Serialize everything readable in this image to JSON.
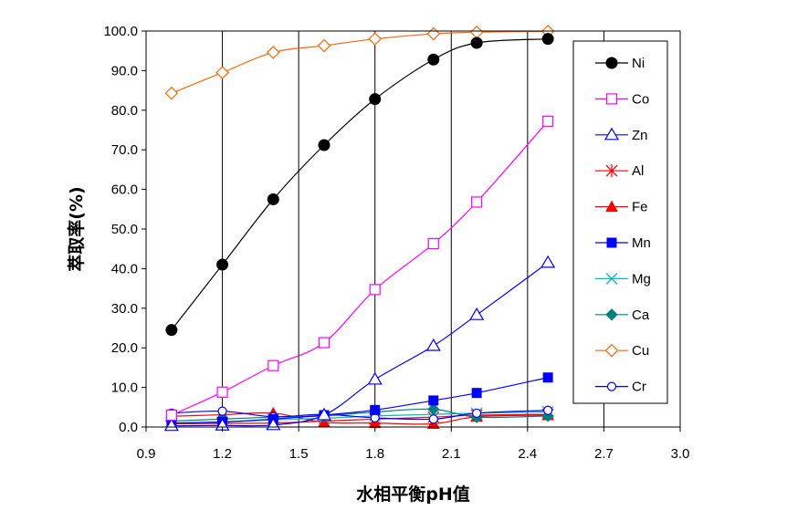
{
  "chart_data": {
    "type": "line",
    "xlabel": "水相平衡pH值",
    "ylabel": "萃取率(%)",
    "xlim": [
      0.9,
      3.0
    ],
    "ylim": [
      0,
      100
    ],
    "x_ticks": [
      "0.9",
      "1.2",
      "1.5",
      "1.8",
      "2.1",
      "2.4",
      "2.7",
      "3.0"
    ],
    "y_ticks": [
      "0.0",
      "10.0",
      "20.0",
      "30.0",
      "40.0",
      "50.0",
      "60.0",
      "70.0",
      "80.0",
      "90.0",
      "100.0"
    ],
    "grid": "vertical",
    "legend_position": "right",
    "x": [
      1.0,
      1.2,
      1.4,
      1.6,
      1.8,
      2.03,
      2.2,
      2.48
    ],
    "series": [
      {
        "name": "Ni",
        "color": "#000000",
        "marker": "filled-circle",
        "values": [
          24.5,
          41.0,
          57.5,
          71.2,
          82.8,
          92.8,
          97.0,
          98.0
        ]
      },
      {
        "name": "Co",
        "color": "#ff00ff",
        "marker": "open-square",
        "values": [
          3.0,
          8.8,
          15.5,
          21.3,
          34.7,
          46.3,
          56.8,
          77.2
        ]
      },
      {
        "name": "Zn",
        "color": "#0000ff",
        "marker": "open-triangle",
        "values": [
          0.3,
          0.4,
          0.5,
          3.0,
          12.0,
          20.5,
          28.3,
          41.5
        ]
      },
      {
        "name": "Al",
        "color": "#ff0000",
        "marker": "asterisk",
        "values": [
          0.8,
          0.9,
          1.0,
          1.5,
          2.0,
          2.5,
          3.0,
          3.2
        ]
      },
      {
        "name": "Fe",
        "color": "#ff0000",
        "marker": "filled-triangle",
        "values": [
          2.7,
          3.1,
          3.5,
          1.2,
          1.0,
          0.8,
          2.6,
          3.0
        ]
      },
      {
        "name": "Mn",
        "color": "#0000ff",
        "marker": "filled-square",
        "values": [
          1.0,
          1.3,
          2.0,
          3.0,
          4.3,
          6.7,
          8.6,
          12.5
        ]
      },
      {
        "name": "Mg",
        "color": "#00bbbb",
        "marker": "x-cross",
        "values": [
          1.0,
          1.2,
          1.8,
          2.2,
          2.8,
          3.2,
          3.5,
          3.8
        ]
      },
      {
        "name": "Ca",
        "color": "#008080",
        "marker": "filled-diamond",
        "values": [
          1.5,
          2.0,
          2.5,
          2.8,
          3.8,
          4.5,
          2.5,
          2.8
        ]
      },
      {
        "name": "Cu",
        "color": "#ff6600",
        "marker": "open-diamond",
        "values": [
          84.3,
          89.5,
          94.6,
          96.3,
          98.0,
          99.3,
          99.7,
          99.9
        ]
      },
      {
        "name": "Cr",
        "color": "#0000ff",
        "marker": "open-circle",
        "values": [
          3.5,
          4.0,
          2.6,
          3.2,
          2.3,
          2.0,
          3.5,
          4.2
        ]
      }
    ]
  }
}
